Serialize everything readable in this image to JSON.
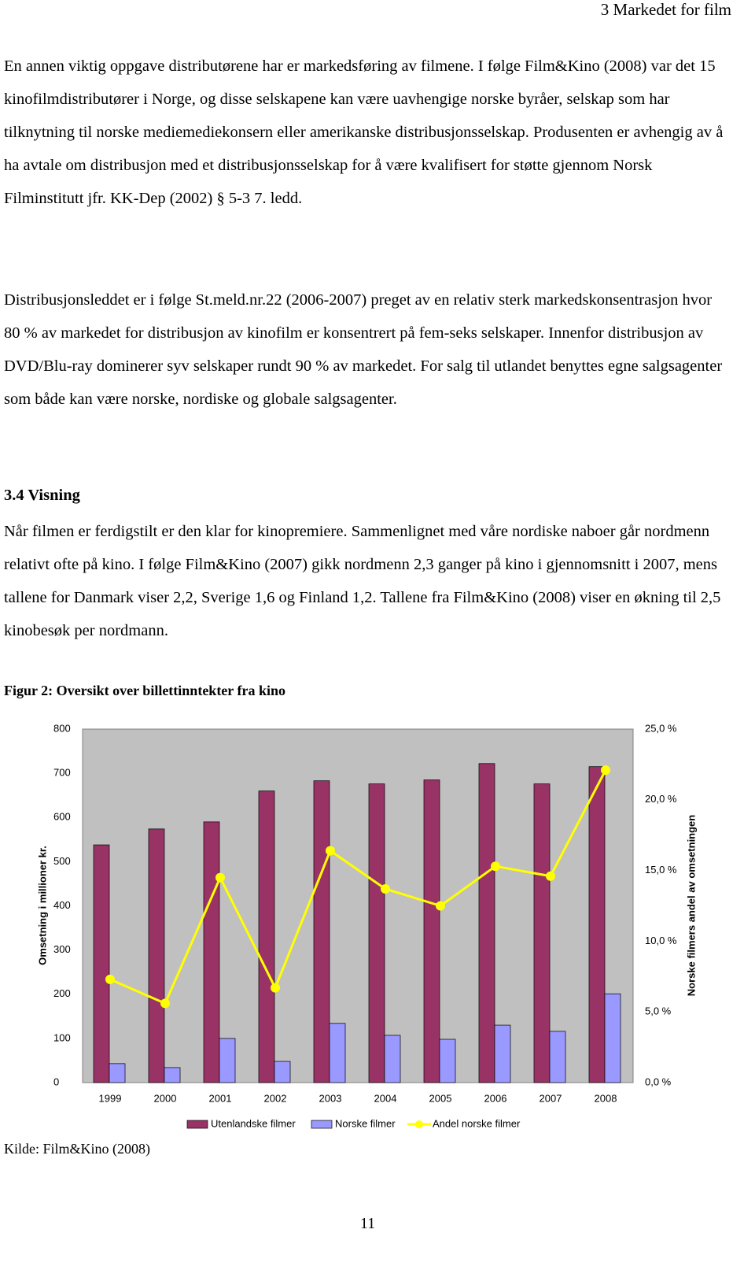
{
  "header": "3 Markedet for film",
  "paragraphs": [
    "En annen viktig oppgave distributørene har er markedsføring av filmene. I følge Film&Kino (2008) var det 15 kinofilmdistributører i Norge, og disse selskapene kan være uavhengige norske byråer, selskap som har tilknytning til norske mediemediekonsern eller amerikanske distribusjonsselskap. Produsenten er avhengig av å ha avtale om distribusjon med et distribusjonsselskap for å være kvalifisert for støtte gjennom Norsk Filminstitutt jfr. KK-Dep (2002) § 5-3 7. ledd.",
    "Distribusjonsleddet er i følge St.meld.nr.22 (2006-2007) preget av en relativ sterk markedskonsentrasjon hvor 80 % av markedet for distribusjon av kinofilm er konsentrert på fem-seks selskaper. Innenfor distribusjon av DVD/Blu-ray dominerer syv selskaper rundt 90 % av markedet. For salg til utlandet benyttes egne salgsagenter som både kan være norske, nordiske og globale salgsagenter."
  ],
  "heading": "3.4 Visning",
  "paragraph_3": "Når filmen er ferdigstilt er den klar for kinopremiere. Sammenlignet med våre nordiske naboer går nordmenn relativt ofte på kino. I følge Film&Kino (2007) gikk nordmenn 2,3 ganger på kino i gjennomsnitt i 2007, mens tallene for Danmark viser 2,2, Sverige 1,6 og Finland 1,2. Tallene fra Film&Kino (2008) viser en økning til 2,5 kinobesøk per nordmann.",
  "figure_caption": "Figur 2: Oversikt over billettinntekter fra kino",
  "source": "Kilde: Film&Kino (2008)",
  "page_number": "11",
  "chart_data": {
    "type": "bar",
    "ylabel": "Omsetning i millioner kr.",
    "y2label": "Norske filmers andel av omsetningen",
    "categories": [
      "1999",
      "2000",
      "2001",
      "2002",
      "2003",
      "2004",
      "2005",
      "2006",
      "2007",
      "2008"
    ],
    "series": [
      {
        "name": "Utenlandske filmer",
        "color": "#993366",
        "values": [
          538,
          574,
          590,
          660,
          683,
          676,
          685,
          722,
          676,
          715
        ]
      },
      {
        "name": "Norske filmer",
        "color": "#9999ff",
        "values": [
          43,
          34,
          100,
          48,
          134,
          107,
          98,
          130,
          116,
          201
        ]
      },
      {
        "name": "Andel norske filmer",
        "color": "#ffff00",
        "type": "line",
        "axis": "y2",
        "values": [
          7.3,
          5.6,
          14.5,
          6.7,
          16.4,
          13.7,
          12.5,
          15.3,
          14.6,
          22.1
        ]
      }
    ],
    "ylim": [
      0,
      800
    ],
    "yticks": [
      0,
      100,
      200,
      300,
      400,
      500,
      600,
      700,
      800
    ],
    "y2lim": [
      0,
      25
    ],
    "y2ticks": [
      {
        "value": 0,
        "label": "0,0 %"
      },
      {
        "value": 5,
        "label": "5,0 %"
      },
      {
        "value": 10,
        "label": "10,0 %"
      },
      {
        "value": 15,
        "label": "15,0 %"
      },
      {
        "value": 20,
        "label": "20,0 %"
      },
      {
        "value": 25,
        "label": "25,0 %"
      }
    ],
    "grid": false,
    "legend": "bottom",
    "plot_background": "#c0c0c0"
  }
}
